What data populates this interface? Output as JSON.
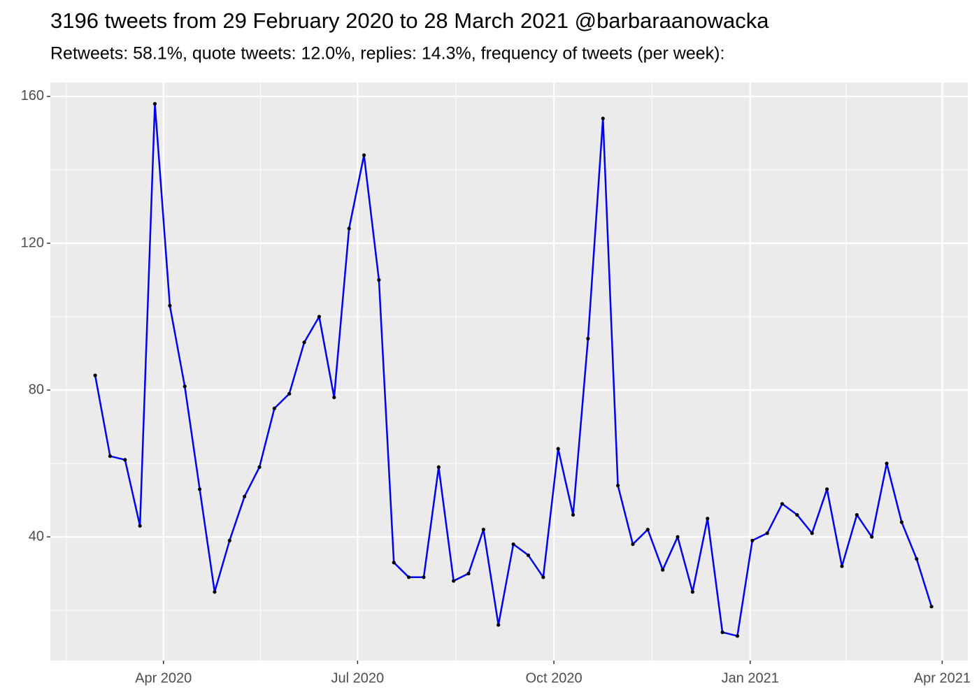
{
  "chart_data": {
    "type": "line",
    "title": "3196 tweets from 29 February 2020 to 28 March 2021 @barbaraanowacka",
    "subtitle": "Retweets: 58.1%, quote tweets: 12.0%, replies: 14.3%, frequency of tweets (per week):",
    "x": [
      "2020-02-29",
      "2020-03-07",
      "2020-03-14",
      "2020-03-21",
      "2020-03-28",
      "2020-04-04",
      "2020-04-11",
      "2020-04-18",
      "2020-04-25",
      "2020-05-02",
      "2020-05-09",
      "2020-05-16",
      "2020-05-23",
      "2020-05-30",
      "2020-06-06",
      "2020-06-13",
      "2020-06-20",
      "2020-06-27",
      "2020-07-04",
      "2020-07-11",
      "2020-07-18",
      "2020-07-25",
      "2020-08-01",
      "2020-08-08",
      "2020-08-15",
      "2020-08-22",
      "2020-08-29",
      "2020-09-05",
      "2020-09-12",
      "2020-09-19",
      "2020-09-26",
      "2020-10-03",
      "2020-10-10",
      "2020-10-17",
      "2020-10-24",
      "2020-10-31",
      "2020-11-07",
      "2020-11-14",
      "2020-11-21",
      "2020-11-28",
      "2020-12-05",
      "2020-12-12",
      "2020-12-19",
      "2020-12-26",
      "2021-01-02",
      "2021-01-09",
      "2021-01-16",
      "2021-01-23",
      "2021-01-30",
      "2021-02-06",
      "2021-02-13",
      "2021-02-20",
      "2021-02-27",
      "2021-03-06",
      "2021-03-13",
      "2021-03-20",
      "2021-03-27"
    ],
    "series": [
      {
        "color": "#0000ee",
        "values": [
          84,
          62,
          61,
          43,
          158,
          103,
          81,
          53,
          25,
          39,
          51,
          59,
          75,
          79,
          93,
          100,
          78,
          124,
          144,
          110,
          33,
          29,
          29,
          59,
          28,
          30,
          42,
          16,
          38,
          35,
          29,
          64,
          46,
          94,
          154,
          54,
          38,
          42,
          31,
          40,
          25,
          45,
          14,
          13,
          39,
          41,
          49,
          46,
          41,
          53,
          32,
          46,
          40,
          60,
          44,
          34,
          21
        ]
      }
    ],
    "point_color": "#000000",
    "xlim": [
      "2020-02-08",
      "2021-04-13"
    ],
    "xticks": [
      {
        "value": "2020-04-01",
        "label": "Apr 2020"
      },
      {
        "value": "2020-07-01",
        "label": "Jul 2020"
      },
      {
        "value": "2020-10-01",
        "label": "Oct 2020"
      },
      {
        "value": "2021-01-01",
        "label": "Jan 2021"
      },
      {
        "value": "2021-04-01",
        "label": "Apr 2021"
      }
    ],
    "ylim": [
      6.3,
      163.8
    ],
    "yticks": [
      40,
      80,
      120,
      160
    ],
    "grid": true
  }
}
